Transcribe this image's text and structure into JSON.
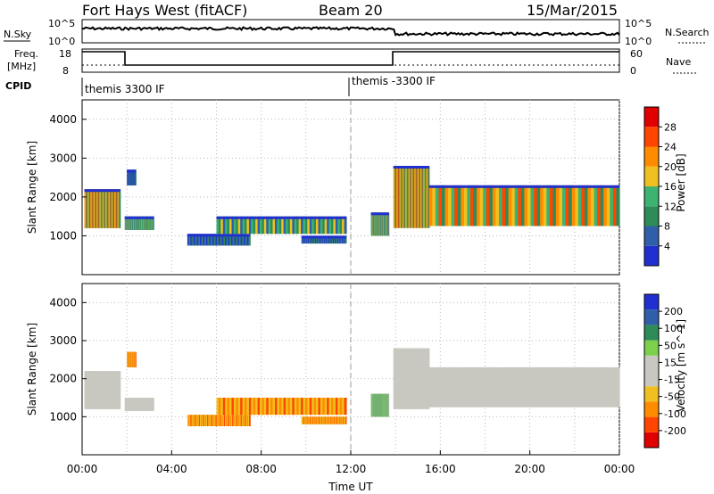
{
  "header": {
    "radar": "Fort Hays West (fitACF)",
    "beam": "Beam 20",
    "date": "15/Mar/2015"
  },
  "panels": {
    "sky": {
      "left_label": "N.Sky",
      "left_ticks": [
        "10^5",
        "10^0"
      ],
      "right_ticks": [
        "10^5",
        "10^0"
      ],
      "right_label": "N.Search"
    },
    "freq": {
      "left_label_1": "Freq.",
      "left_label_2": "[MHz]",
      "left_ticks": [
        "18",
        "8"
      ],
      "right_ticks": [
        "60",
        "0"
      ],
      "right_label": "Nave"
    },
    "cpid": {
      "label": "CPID",
      "modes": [
        "themis 3300 IF",
        "themis -3300 IF"
      ]
    }
  },
  "colors": {
    "power_scale": [
      "#2030d0",
      "#2f5fa8",
      "#2e8b57",
      "#3cb371",
      "#f0c020",
      "#ff8c00",
      "#ff4500",
      "#e00000"
    ],
    "velocity_scale": [
      "#e00000",
      "#ff4500",
      "#ff8c00",
      "#f0c020",
      "#c8c8c0",
      "#c8c8c0",
      "#7cd04a",
      "#2e8b57",
      "#2f5fa8",
      "#2030d0"
    ]
  },
  "chart_data": [
    {
      "type": "heatmap",
      "name": "power",
      "ylabel": "Slant Range [km]",
      "ylim": [
        0,
        4500
      ],
      "yticks": [
        1000,
        2000,
        3000,
        4000
      ],
      "xlim": [
        0,
        24
      ],
      "colorbar_label": "Power [dB]",
      "colorbar_ticks": [
        4,
        8,
        12,
        16,
        20,
        24,
        28
      ],
      "grid": true,
      "regions": [
        {
          "t0": 0.1,
          "t1": 1.7,
          "r0": 1200,
          "r1": 2200,
          "level": "high"
        },
        {
          "t0": 1.9,
          "t1": 3.2,
          "r0": 1150,
          "r1": 1500,
          "level": "mid"
        },
        {
          "t0": 2.0,
          "t1": 2.4,
          "r0": 2300,
          "r1": 2700,
          "level": "low"
        },
        {
          "t0": 4.7,
          "t1": 7.5,
          "r0": 750,
          "r1": 1050,
          "level": "low"
        },
        {
          "t0": 6.0,
          "t1": 11.8,
          "r0": 1050,
          "r1": 1500,
          "level": "mid"
        },
        {
          "t0": 9.8,
          "t1": 11.8,
          "r0": 800,
          "r1": 1000,
          "level": "low"
        },
        {
          "t0": 12.9,
          "t1": 13.7,
          "r0": 1000,
          "r1": 1600,
          "level": "mid"
        },
        {
          "t0": 13.9,
          "t1": 15.5,
          "r0": 1200,
          "r1": 2800,
          "level": "high"
        },
        {
          "t0": 15.5,
          "t1": 24.0,
          "r0": 1250,
          "r1": 2300,
          "level": "high"
        }
      ]
    },
    {
      "type": "heatmap",
      "name": "velocity",
      "ylabel": "Slant Range [km]",
      "ylim": [
        0,
        4500
      ],
      "yticks": [
        1000,
        2000,
        3000,
        4000
      ],
      "xlim": [
        0,
        24
      ],
      "colorbar_label": "Velocity [m s^-1]",
      "colorbar_ticks": [
        -200,
        -100,
        -50,
        -15,
        15,
        50,
        100,
        200
      ],
      "grid": true,
      "regions": [
        {
          "t0": 0.1,
          "t1": 1.7,
          "r0": 1200,
          "r1": 2200,
          "level": "ground"
        },
        {
          "t0": 1.9,
          "t1": 3.2,
          "r0": 1150,
          "r1": 1500,
          "level": "ground"
        },
        {
          "t0": 2.0,
          "t1": 2.4,
          "r0": 2300,
          "r1": 2700,
          "level": "neg"
        },
        {
          "t0": 4.7,
          "t1": 7.5,
          "r0": 750,
          "r1": 1050,
          "level": "neg"
        },
        {
          "t0": 6.0,
          "t1": 11.8,
          "r0": 1050,
          "r1": 1500,
          "level": "neg"
        },
        {
          "t0": 9.8,
          "t1": 11.8,
          "r0": 800,
          "r1": 1000,
          "level": "neg"
        },
        {
          "t0": 12.9,
          "t1": 13.7,
          "r0": 1000,
          "r1": 1600,
          "level": "pos"
        },
        {
          "t0": 13.9,
          "t1": 15.5,
          "r0": 1200,
          "r1": 2800,
          "level": "ground"
        },
        {
          "t0": 15.5,
          "t1": 24.0,
          "r0": 1250,
          "r1": 2300,
          "level": "ground"
        }
      ]
    }
  ],
  "x_axis": {
    "label": "Time UT",
    "ticks": [
      "00:00",
      "04:00",
      "08:00",
      "12:00",
      "16:00",
      "20:00",
      "00:00"
    ]
  }
}
